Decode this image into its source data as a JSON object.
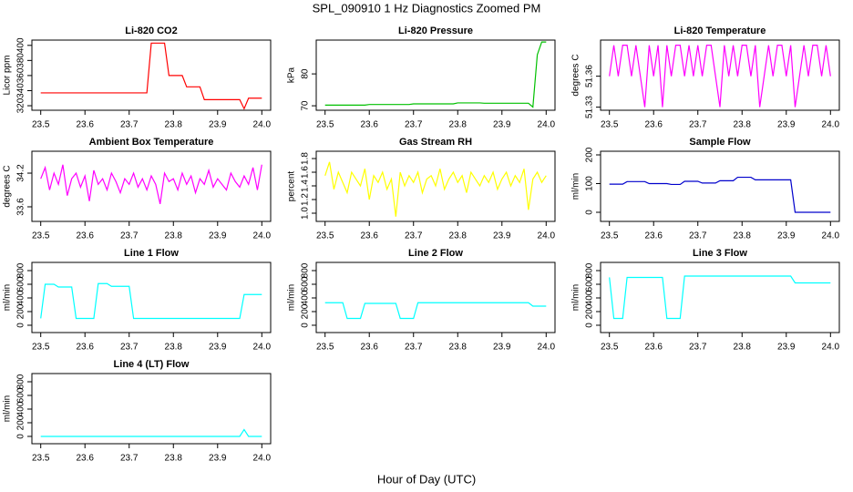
{
  "title": "SPL_090910  1 Hz Diagnostics Zoomed PM",
  "x_label": "Hour of Day (UTC)",
  "chart_data": [
    {
      "type": "line",
      "title": "Li-820 CO2",
      "y_label": "Licor ppm",
      "color": "#ff0000",
      "xlim": [
        23.48,
        24.02
      ],
      "xticks": [
        23.5,
        23.6,
        23.7,
        23.8,
        23.9,
        {
          "value": 24,
          "label": "24.0"
        }
      ],
      "ylim": [
        314,
        407
      ],
      "yticks": [
        320,
        340,
        360,
        380,
        400
      ],
      "x": [
        23.5,
        23.51,
        23.52,
        23.53,
        23.54,
        23.55,
        23.56,
        23.57,
        23.58,
        23.59,
        23.6,
        23.61,
        23.62,
        23.63,
        23.64,
        23.65,
        23.66,
        23.67,
        23.68,
        23.69,
        23.7,
        23.71,
        23.72,
        23.73,
        23.74,
        23.75,
        23.76,
        23.77,
        23.78,
        23.79,
        23.8,
        23.81,
        23.82,
        23.83,
        23.84,
        23.85,
        23.86,
        23.87,
        23.88,
        23.89,
        23.9,
        23.91,
        23.92,
        23.93,
        23.94,
        23.95,
        23.96,
        23.97,
        23.98,
        23.99,
        24.0
      ],
      "values": [
        337,
        337,
        337,
        337,
        337,
        337,
        337,
        337,
        337,
        337,
        337,
        337,
        337,
        337,
        337,
        337,
        337,
        337,
        337,
        337,
        337,
        337,
        337,
        337,
        337,
        403,
        403,
        403,
        403,
        360,
        360,
        360,
        360,
        345,
        345,
        345,
        345,
        328,
        328,
        328,
        328,
        328,
        328,
        328,
        328,
        328,
        316,
        330,
        330,
        330,
        330
      ]
    },
    {
      "type": "line",
      "title": "Li-820 Pressure",
      "y_label": "kPa",
      "color": "#00c000",
      "xlim": [
        23.48,
        24.02
      ],
      "xticks": [
        23.5,
        23.6,
        23.7,
        23.8,
        23.9,
        {
          "value": 24,
          "label": "24.0"
        }
      ],
      "ylim": [
        68.6,
        90.6
      ],
      "yticks": [
        70,
        80
      ],
      "x": [
        23.5,
        23.51,
        23.52,
        23.53,
        23.54,
        23.55,
        23.56,
        23.57,
        23.58,
        23.59,
        23.6,
        23.61,
        23.62,
        23.63,
        23.64,
        23.65,
        23.66,
        23.67,
        23.68,
        23.69,
        23.7,
        23.71,
        23.72,
        23.73,
        23.74,
        23.75,
        23.76,
        23.77,
        23.78,
        23.79,
        23.8,
        23.81,
        23.82,
        23.83,
        23.84,
        23.85,
        23.86,
        23.87,
        23.88,
        23.89,
        23.9,
        23.91,
        23.92,
        23.93,
        23.94,
        23.95,
        23.96,
        23.97,
        23.98,
        23.99,
        24.0
      ],
      "values": [
        70.2,
        70.2,
        70.2,
        70.2,
        70.2,
        70.2,
        70.2,
        70.2,
        70.2,
        70.2,
        70.4,
        70.4,
        70.4,
        70.4,
        70.4,
        70.4,
        70.4,
        70.4,
        70.4,
        70.4,
        70.6,
        70.6,
        70.6,
        70.6,
        70.6,
        70.6,
        70.6,
        70.6,
        70.6,
        70.6,
        70.9,
        70.9,
        70.9,
        70.9,
        70.9,
        70.9,
        70.8,
        70.8,
        70.8,
        70.8,
        70.8,
        70.8,
        70.8,
        70.8,
        70.8,
        70.8,
        70.8,
        69.6,
        86,
        90,
        90
      ]
    },
    {
      "type": "line",
      "title": "Li-820 Temperature",
      "y_label": "degrees C",
      "color": "#ff00ff",
      "xlim": [
        23.48,
        24.02
      ],
      "xticks": [
        23.5,
        23.6,
        23.7,
        23.8,
        23.9,
        {
          "value": 24,
          "label": "24.0"
        }
      ],
      "ylim": [
        51.327,
        51.395
      ],
      "yticks": [
        51.33,
        51.36
      ],
      "x": [
        23.5,
        23.51,
        23.52,
        23.53,
        23.54,
        23.55,
        23.56,
        23.57,
        23.58,
        23.59,
        23.6,
        23.61,
        23.62,
        23.63,
        23.64,
        23.65,
        23.66,
        23.67,
        23.68,
        23.69,
        23.7,
        23.71,
        23.72,
        23.73,
        23.74,
        23.75,
        23.76,
        23.77,
        23.78,
        23.79,
        23.8,
        23.81,
        23.82,
        23.83,
        23.84,
        23.85,
        23.86,
        23.87,
        23.88,
        23.89,
        23.9,
        23.91,
        23.92,
        23.93,
        23.94,
        23.95,
        23.96,
        23.97,
        23.98,
        23.99,
        24.0
      ],
      "values": [
        51.36,
        51.39,
        51.36,
        51.39,
        51.39,
        51.36,
        51.39,
        51.36,
        51.33,
        51.39,
        51.36,
        51.39,
        51.33,
        51.39,
        51.36,
        51.39,
        51.39,
        51.36,
        51.39,
        51.36,
        51.39,
        51.36,
        51.39,
        51.39,
        51.36,
        51.33,
        51.39,
        51.36,
        51.39,
        51.36,
        51.39,
        51.39,
        51.36,
        51.39,
        51.33,
        51.36,
        51.39,
        51.36,
        51.39,
        51.39,
        51.36,
        51.39,
        51.33,
        51.36,
        51.39,
        51.36,
        51.39,
        51.39,
        51.36,
        51.39,
        51.36
      ]
    },
    {
      "type": "line",
      "title": "Ambient Box Temperature",
      "y_label": "degrees C",
      "color": "#ff00ff",
      "xlim": [
        23.48,
        24.02
      ],
      "xticks": [
        23.5,
        23.6,
        23.7,
        23.8,
        23.9,
        {
          "value": 24,
          "label": "24.0"
        }
      ],
      "ylim": [
        33.34,
        34.59
      ],
      "yticks": [
        33.6,
        34.2
      ],
      "x": [
        23.5,
        23.51,
        23.52,
        23.53,
        23.54,
        23.55,
        23.56,
        23.57,
        23.58,
        23.59,
        23.6,
        23.61,
        23.62,
        23.63,
        23.64,
        23.65,
        23.66,
        23.67,
        23.68,
        23.69,
        23.7,
        23.71,
        23.72,
        23.73,
        23.74,
        23.75,
        23.76,
        23.77,
        23.78,
        23.79,
        23.8,
        23.81,
        23.82,
        23.83,
        23.84,
        23.85,
        23.86,
        23.87,
        23.88,
        23.89,
        23.9,
        23.91,
        23.92,
        23.93,
        23.94,
        23.95,
        23.96,
        23.97,
        23.98,
        23.99,
        24.0
      ],
      "values": [
        34.1,
        34.3,
        33.9,
        34.2,
        34.0,
        34.35,
        33.8,
        34.1,
        34.2,
        33.95,
        34.15,
        33.7,
        34.25,
        34.0,
        34.1,
        33.9,
        34.2,
        34.05,
        33.85,
        34.1,
        34.0,
        34.2,
        33.95,
        34.1,
        33.9,
        34.15,
        34.0,
        33.65,
        34.2,
        34.05,
        34.1,
        33.9,
        34.2,
        34.0,
        34.15,
        33.85,
        34.1,
        34.0,
        34.25,
        33.95,
        34.1,
        34.0,
        33.9,
        34.2,
        34.05,
        33.95,
        34.15,
        34.0,
        34.3,
        33.9,
        34.35
      ]
    },
    {
      "type": "line",
      "title": "Gas Stream RH",
      "y_label": "percent",
      "color": "#ffff00",
      "xlim": [
        23.48,
        24.02
      ],
      "xticks": [
        23.5,
        23.6,
        23.7,
        23.8,
        23.9,
        {
          "value": 24,
          "label": "24.0"
        }
      ],
      "ylim": [
        0.88,
        1.907
      ],
      "yticks": [
        {
          "value": 1,
          "label": "1.0"
        },
        1.2,
        1.4,
        1.6,
        1.8
      ],
      "x": [
        23.5,
        23.51,
        23.52,
        23.53,
        23.54,
        23.55,
        23.56,
        23.57,
        23.58,
        23.59,
        23.6,
        23.61,
        23.62,
        23.63,
        23.64,
        23.65,
        23.66,
        23.67,
        23.68,
        23.69,
        23.7,
        23.71,
        23.72,
        23.73,
        23.74,
        23.75,
        23.76,
        23.77,
        23.78,
        23.79,
        23.8,
        23.81,
        23.82,
        23.83,
        23.84,
        23.85,
        23.86,
        23.87,
        23.88,
        23.89,
        23.9,
        23.91,
        23.92,
        23.93,
        23.94,
        23.95,
        23.96,
        23.97,
        23.98,
        23.99,
        24.0
      ],
      "values": [
        1.55,
        1.75,
        1.35,
        1.6,
        1.45,
        1.3,
        1.6,
        1.5,
        1.4,
        1.65,
        1.2,
        1.55,
        1.45,
        1.6,
        1.35,
        1.5,
        0.95,
        1.6,
        1.4,
        1.55,
        1.45,
        1.6,
        1.3,
        1.5,
        1.55,
        1.4,
        1.65,
        1.35,
        1.5,
        1.6,
        1.45,
        1.55,
        1.3,
        1.6,
        1.5,
        1.4,
        1.55,
        1.45,
        1.6,
        1.35,
        1.5,
        1.6,
        1.4,
        1.55,
        1.45,
        1.65,
        1.05,
        1.5,
        1.6,
        1.45,
        1.55
      ]
    },
    {
      "type": "line",
      "title": "Sample Flow",
      "y_label": "ml/min",
      "color": "#0000cc",
      "xlim": [
        23.48,
        24.02
      ],
      "xticks": [
        23.5,
        23.6,
        23.7,
        23.8,
        23.9,
        {
          "value": 24,
          "label": "24.0"
        }
      ],
      "ylim": [
        -31.7,
        212.7
      ],
      "yticks": [
        0,
        100,
        200
      ],
      "x": [
        23.5,
        23.51,
        23.52,
        23.53,
        23.54,
        23.55,
        23.56,
        23.57,
        23.58,
        23.59,
        23.6,
        23.61,
        23.62,
        23.63,
        23.64,
        23.65,
        23.66,
        23.67,
        23.68,
        23.69,
        23.7,
        23.71,
        23.72,
        23.73,
        23.74,
        23.75,
        23.76,
        23.77,
        23.78,
        23.79,
        23.8,
        23.81,
        23.82,
        23.83,
        23.84,
        23.85,
        23.86,
        23.87,
        23.88,
        23.89,
        23.9,
        23.91,
        23.92,
        23.93,
        23.94,
        23.95,
        23.96,
        23.97,
        23.98,
        23.99,
        24.0
      ],
      "values": [
        98,
        98,
        98,
        98,
        107,
        107,
        107,
        107,
        107,
        100,
        100,
        100,
        100,
        100,
        97,
        97,
        97,
        108,
        108,
        108,
        108,
        102,
        102,
        102,
        102,
        110,
        110,
        110,
        110,
        122,
        122,
        122,
        122,
        113,
        113,
        113,
        113,
        113,
        113,
        113,
        113,
        113,
        0,
        0,
        0,
        0,
        0,
        0,
        0,
        0,
        0
      ]
    },
    {
      "type": "line",
      "title": "Line 1 Flow",
      "y_label": "ml/min",
      "color": "#00ffff",
      "xlim": [
        23.48,
        24.02
      ],
      "xticks": [
        23.5,
        23.6,
        23.7,
        23.8,
        23.9,
        {
          "value": 24,
          "label": "24.0"
        }
      ],
      "ylim": [
        -107,
        920
      ],
      "yticks": [
        0,
        200,
        400,
        600,
        800
      ],
      "x": [
        23.5,
        23.51,
        23.52,
        23.53,
        23.54,
        23.55,
        23.56,
        23.57,
        23.58,
        23.59,
        23.6,
        23.61,
        23.62,
        23.63,
        23.64,
        23.65,
        23.66,
        23.67,
        23.68,
        23.69,
        23.7,
        23.71,
        23.72,
        23.73,
        23.74,
        23.75,
        23.76,
        23.77,
        23.78,
        23.79,
        23.8,
        23.81,
        23.82,
        23.83,
        23.84,
        23.85,
        23.86,
        23.87,
        23.88,
        23.89,
        23.9,
        23.91,
        23.92,
        23.93,
        23.94,
        23.95,
        23.96,
        23.97,
        23.98,
        23.99,
        24.0
      ],
      "values": [
        100,
        600,
        600,
        600,
        560,
        560,
        560,
        560,
        100,
        100,
        100,
        100,
        100,
        610,
        610,
        610,
        570,
        570,
        570,
        570,
        570,
        100,
        100,
        100,
        100,
        100,
        100,
        100,
        100,
        100,
        100,
        100,
        100,
        100,
        100,
        100,
        100,
        100,
        100,
        100,
        100,
        100,
        100,
        100,
        100,
        100,
        450,
        450,
        450,
        450,
        450
      ]
    },
    {
      "type": "line",
      "title": "Line 2 Flow",
      "y_label": "ml/min",
      "color": "#00ffff",
      "xlim": [
        23.48,
        24.02
      ],
      "xticks": [
        23.5,
        23.6,
        23.7,
        23.8,
        23.9,
        {
          "value": 24,
          "label": "24.0"
        }
      ],
      "ylim": [
        -107,
        920
      ],
      "yticks": [
        0,
        200,
        400,
        600,
        800
      ],
      "x": [
        23.5,
        23.51,
        23.52,
        23.53,
        23.54,
        23.55,
        23.56,
        23.57,
        23.58,
        23.59,
        23.6,
        23.61,
        23.62,
        23.63,
        23.64,
        23.65,
        23.66,
        23.67,
        23.68,
        23.69,
        23.7,
        23.71,
        23.72,
        23.73,
        23.74,
        23.75,
        23.76,
        23.77,
        23.78,
        23.79,
        23.8,
        23.81,
        23.82,
        23.83,
        23.84,
        23.85,
        23.86,
        23.87,
        23.88,
        23.89,
        23.9,
        23.91,
        23.92,
        23.93,
        23.94,
        23.95,
        23.96,
        23.97,
        23.98,
        23.99,
        24.0
      ],
      "values": [
        330,
        330,
        330,
        330,
        330,
        100,
        100,
        100,
        100,
        320,
        320,
        320,
        320,
        320,
        320,
        320,
        320,
        100,
        100,
        100,
        100,
        330,
        330,
        330,
        330,
        330,
        330,
        330,
        330,
        330,
        330,
        330,
        330,
        330,
        330,
        330,
        330,
        330,
        330,
        330,
        330,
        330,
        330,
        330,
        330,
        330,
        330,
        280,
        280,
        280,
        280
      ]
    },
    {
      "type": "line",
      "title": "Line 3 Flow",
      "y_label": "ml/min",
      "color": "#00ffff",
      "xlim": [
        23.48,
        24.02
      ],
      "xticks": [
        23.5,
        23.6,
        23.7,
        23.8,
        23.9,
        {
          "value": 24,
          "label": "24.0"
        }
      ],
      "ylim": [
        -107,
        920
      ],
      "yticks": [
        0,
        200,
        400,
        600,
        800
      ],
      "x": [
        23.5,
        23.51,
        23.52,
        23.53,
        23.54,
        23.55,
        23.56,
        23.57,
        23.58,
        23.59,
        23.6,
        23.61,
        23.62,
        23.63,
        23.64,
        23.65,
        23.66,
        23.67,
        23.68,
        23.69,
        23.7,
        23.71,
        23.72,
        23.73,
        23.74,
        23.75,
        23.76,
        23.77,
        23.78,
        23.79,
        23.8,
        23.81,
        23.82,
        23.83,
        23.84,
        23.85,
        23.86,
        23.87,
        23.88,
        23.89,
        23.9,
        23.91,
        23.92,
        23.93,
        23.94,
        23.95,
        23.96,
        23.97,
        23.98,
        23.99,
        24.0
      ],
      "values": [
        700,
        100,
        100,
        100,
        700,
        700,
        700,
        700,
        700,
        700,
        700,
        700,
        700,
        100,
        100,
        100,
        100,
        720,
        720,
        720,
        720,
        720,
        720,
        720,
        720,
        720,
        720,
        720,
        720,
        720,
        720,
        720,
        720,
        720,
        720,
        720,
        720,
        720,
        720,
        720,
        720,
        720,
        620,
        620,
        620,
        620,
        620,
        620,
        620,
        620,
        620
      ]
    },
    {
      "type": "line",
      "title": "Line 4 (LT) Flow",
      "y_label": "ml/min",
      "color": "#00ffff",
      "xlim": [
        23.48,
        24.02
      ],
      "xticks": [
        23.5,
        23.6,
        23.7,
        23.8,
        23.9,
        {
          "value": 24,
          "label": "24.0"
        }
      ],
      "ylim": [
        -107,
        920
      ],
      "yticks": [
        0,
        200,
        400,
        600,
        800
      ],
      "x": [
        23.5,
        23.51,
        23.52,
        23.53,
        23.54,
        23.55,
        23.56,
        23.57,
        23.58,
        23.59,
        23.6,
        23.61,
        23.62,
        23.63,
        23.64,
        23.65,
        23.66,
        23.67,
        23.68,
        23.69,
        23.7,
        23.71,
        23.72,
        23.73,
        23.74,
        23.75,
        23.76,
        23.77,
        23.78,
        23.79,
        23.8,
        23.81,
        23.82,
        23.83,
        23.84,
        23.85,
        23.86,
        23.87,
        23.88,
        23.89,
        23.9,
        23.91,
        23.92,
        23.93,
        23.94,
        23.95,
        23.96,
        23.97,
        23.98,
        23.99,
        24.0
      ],
      "values": [
        0,
        0,
        0,
        0,
        0,
        0,
        0,
        0,
        0,
        0,
        0,
        0,
        0,
        0,
        0,
        0,
        0,
        0,
        0,
        0,
        0,
        0,
        0,
        0,
        0,
        0,
        0,
        0,
        0,
        0,
        0,
        0,
        0,
        0,
        0,
        0,
        0,
        0,
        0,
        0,
        0,
        0,
        0,
        0,
        0,
        0,
        100,
        0,
        0,
        0,
        0
      ]
    }
  ]
}
